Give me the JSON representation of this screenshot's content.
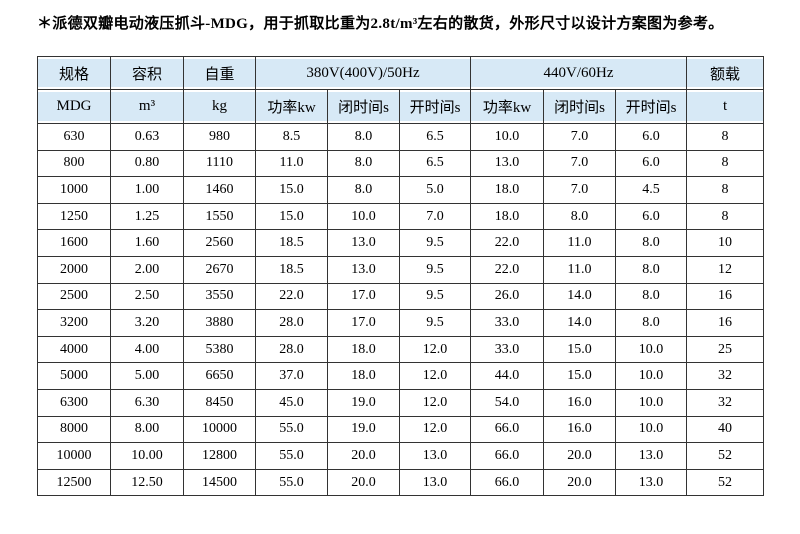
{
  "note": "＊派德双瓣电动液压抓斗-MDG，用于抓取比重为2.8t/m³左右的散货，外形尺寸以设计方案图为参考。",
  "table": {
    "header": {
      "spec": "规格",
      "capacity": "容积",
      "weight": "自重",
      "group_380v": "380V(400V)/50Hz",
      "group_440v": "440V/60Hz",
      "rated_load": "额载"
    },
    "subheader": [
      "MDG",
      "m³",
      "kg",
      "功率kw",
      "闭时间s",
      "开时间s",
      "功率kw",
      "闭时间s",
      "开时间s",
      "t"
    ],
    "rows": [
      [
        "630",
        "0.63",
        "980",
        "8.5",
        "8.0",
        "6.5",
        "10.0",
        "7.0",
        "6.0",
        "8"
      ],
      [
        "800",
        "0.80",
        "1110",
        "11.0",
        "8.0",
        "6.5",
        "13.0",
        "7.0",
        "6.0",
        "8"
      ],
      [
        "1000",
        "1.00",
        "1460",
        "15.0",
        "8.0",
        "5.0",
        "18.0",
        "7.0",
        "4.5",
        "8"
      ],
      [
        "1250",
        "1.25",
        "1550",
        "15.0",
        "10.0",
        "7.0",
        "18.0",
        "8.0",
        "6.0",
        "8"
      ],
      [
        "1600",
        "1.60",
        "2560",
        "18.5",
        "13.0",
        "9.5",
        "22.0",
        "11.0",
        "8.0",
        "10"
      ],
      [
        "2000",
        "2.00",
        "2670",
        "18.5",
        "13.0",
        "9.5",
        "22.0",
        "11.0",
        "8.0",
        "12"
      ],
      [
        "2500",
        "2.50",
        "3550",
        "22.0",
        "17.0",
        "9.5",
        "26.0",
        "14.0",
        "8.0",
        "16"
      ],
      [
        "3200",
        "3.20",
        "3880",
        "28.0",
        "17.0",
        "9.5",
        "33.0",
        "14.0",
        "8.0",
        "16"
      ],
      [
        "4000",
        "4.00",
        "5380",
        "28.0",
        "18.0",
        "12.0",
        "33.0",
        "15.0",
        "10.0",
        "25"
      ],
      [
        "5000",
        "5.00",
        "6650",
        "37.0",
        "18.0",
        "12.0",
        "44.0",
        "15.0",
        "10.0",
        "32"
      ],
      [
        "6300",
        "6.30",
        "8450",
        "45.0",
        "19.0",
        "12.0",
        "54.0",
        "16.0",
        "10.0",
        "32"
      ],
      [
        "8000",
        "8.00",
        "10000",
        "55.0",
        "19.0",
        "12.0",
        "66.0",
        "16.0",
        "10.0",
        "40"
      ],
      [
        "10000",
        "10.00",
        "12800",
        "55.0",
        "20.0",
        "13.0",
        "66.0",
        "20.0",
        "13.0",
        "52"
      ],
      [
        "12500",
        "12.50",
        "14500",
        "55.0",
        "20.0",
        "13.0",
        "66.0",
        "20.0",
        "13.0",
        "52"
      ]
    ]
  },
  "colors": {
    "page_bg": "#ffffff",
    "header_bg": "#d7e9f6",
    "border": "#333333",
    "text": "#000000"
  }
}
